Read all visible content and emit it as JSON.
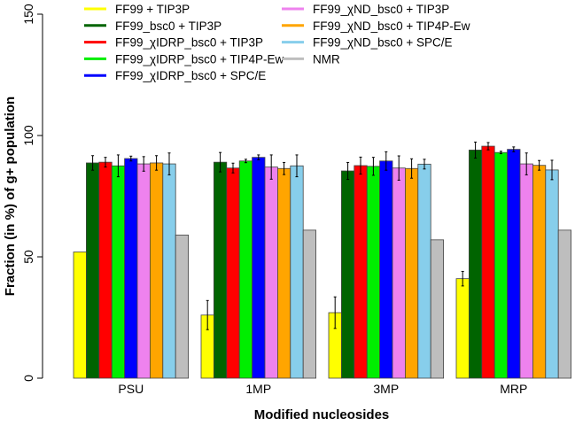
{
  "chart_data": {
    "type": "bar",
    "title": "",
    "xlabel": "Modified nucleosides",
    "ylabel": "Fraction (in %) of g+ population",
    "ylim": [
      0,
      150
    ],
    "yticks": [
      "0",
      "50",
      "100",
      "150"
    ],
    "grid": false,
    "legend_placement": "top",
    "categories": [
      "PSU",
      "1MP",
      "3MP",
      "MRP"
    ],
    "series": [
      {
        "name": "FF99 + TIP3P",
        "color": "#ffff00",
        "values": [
          52,
          26,
          27,
          41
        ],
        "errors": [
          null,
          6,
          6.5,
          3
        ]
      },
      {
        "name": "FF99_bsc0 + TIP3P",
        "color": "#006400",
        "values": [
          88.7,
          89,
          85.4,
          94
        ],
        "errors": [
          3,
          4,
          3.5,
          3.3
        ]
      },
      {
        "name": "FF99_χIDRP_bsc0 + TIP3P",
        "color": "#ff0000",
        "values": [
          89,
          86.6,
          87.6,
          95.6
        ],
        "errors": [
          2,
          2,
          3.5,
          1.5
        ]
      },
      {
        "name": "FF99_χIDRP_bsc0 + TIP4P-Ew",
        "color": "#00ee00",
        "values": [
          87.5,
          89.5,
          87.3,
          93
        ],
        "errors": [
          4.5,
          0.7,
          3.7,
          0.5
        ]
      },
      {
        "name": "FF99_χIDRP_bsc0 + SPC/E",
        "color": "#0000ff",
        "values": [
          90.5,
          91,
          89.5,
          94.3
        ],
        "errors": [
          1,
          1,
          3.8,
          1
        ]
      },
      {
        "name": "FF99_χND_bsc0 + TIP3P",
        "color": "#ee82ee",
        "values": [
          88.3,
          87,
          86.6,
          88.3
        ],
        "errors": [
          3,
          5,
          5,
          4.5
        ]
      },
      {
        "name": "FF99_χND_bsc0 + TIP4P-Ew",
        "color": "#ffa500",
        "values": [
          88.7,
          86.4,
          86.4,
          87.7
        ],
        "errors": [
          3,
          2.5,
          4,
          2
        ]
      },
      {
        "name": "FF99_χND_bsc0 + SPC/E",
        "color": "#87ceeb",
        "values": [
          88.3,
          87.5,
          88.2,
          85.8
        ],
        "errors": [
          4.5,
          4.5,
          2,
          4
        ]
      },
      {
        "name": "NMR",
        "color": "#bebebe",
        "values": [
          59,
          61,
          57,
          61
        ],
        "errors": [
          null,
          null,
          null,
          null
        ]
      }
    ]
  }
}
